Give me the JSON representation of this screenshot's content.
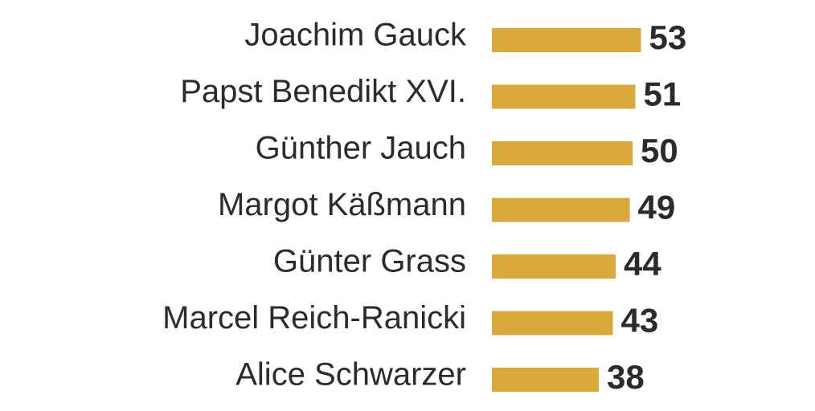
{
  "chart_data": {
    "type": "bar",
    "orientation": "horizontal",
    "categories": [
      "Joachim Gauck",
      "Papst Benedikt XVI.",
      "Günther Jauch",
      "Margot Käßmann",
      "Günter Grass",
      "Marcel Reich-Ranicki",
      "Alice Schwarzer"
    ],
    "values": [
      53,
      51,
      50,
      49,
      44,
      43,
      38
    ],
    "title": "",
    "xlabel": "",
    "ylabel": "",
    "grid": false,
    "legend": "none",
    "colors": {
      "bar": "#d9a93c",
      "text": "#2b2b2b",
      "background": "#ffffff"
    }
  }
}
